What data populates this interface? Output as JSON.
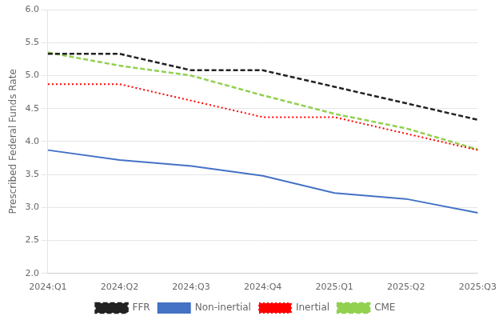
{
  "chart_data": {
    "type": "line",
    "categories": [
      "2024:Q1",
      "2024:Q2",
      "2024:Q3",
      "2024:Q4",
      "2025:Q1",
      "2025:Q2",
      "2025:Q3"
    ],
    "series": [
      {
        "name": "FFR",
        "color": "#222222",
        "line_style": "dashed",
        "values": [
          5.33,
          5.33,
          5.08,
          5.08,
          4.83,
          4.58,
          4.33
        ]
      },
      {
        "name": "Non-inertial",
        "color": "#4472C4",
        "line_style": "solid",
        "values": [
          3.87,
          3.72,
          3.63,
          3.48,
          3.22,
          3.13,
          2.92
        ]
      },
      {
        "name": "Inertial",
        "color": "#FF0000",
        "line_style": "dotted",
        "values": [
          4.87,
          4.87,
          4.62,
          4.37,
          4.37,
          4.12,
          3.87
        ]
      },
      {
        "name": "CME",
        "color": "#92D050",
        "line_style": "dashed",
        "values": [
          5.35,
          5.15,
          5.0,
          4.7,
          4.42,
          4.2,
          3.88
        ]
      }
    ],
    "y_label": "Prescribed Federal Funds Rate",
    "ylim": [
      2.0,
      6.0
    ],
    "yticks": [
      {
        "value": 2.0,
        "label": "2.0"
      },
      2.5,
      {
        "value": 3.0,
        "label": "3.0"
      },
      3.5,
      {
        "value": 4.0,
        "label": "4.0"
      },
      4.5,
      {
        "value": 5.0,
        "label": "5.0"
      },
      5.5,
      {
        "value": 6.0,
        "label": "6.0"
      }
    ],
    "grid": true,
    "legend": "bottom"
  }
}
